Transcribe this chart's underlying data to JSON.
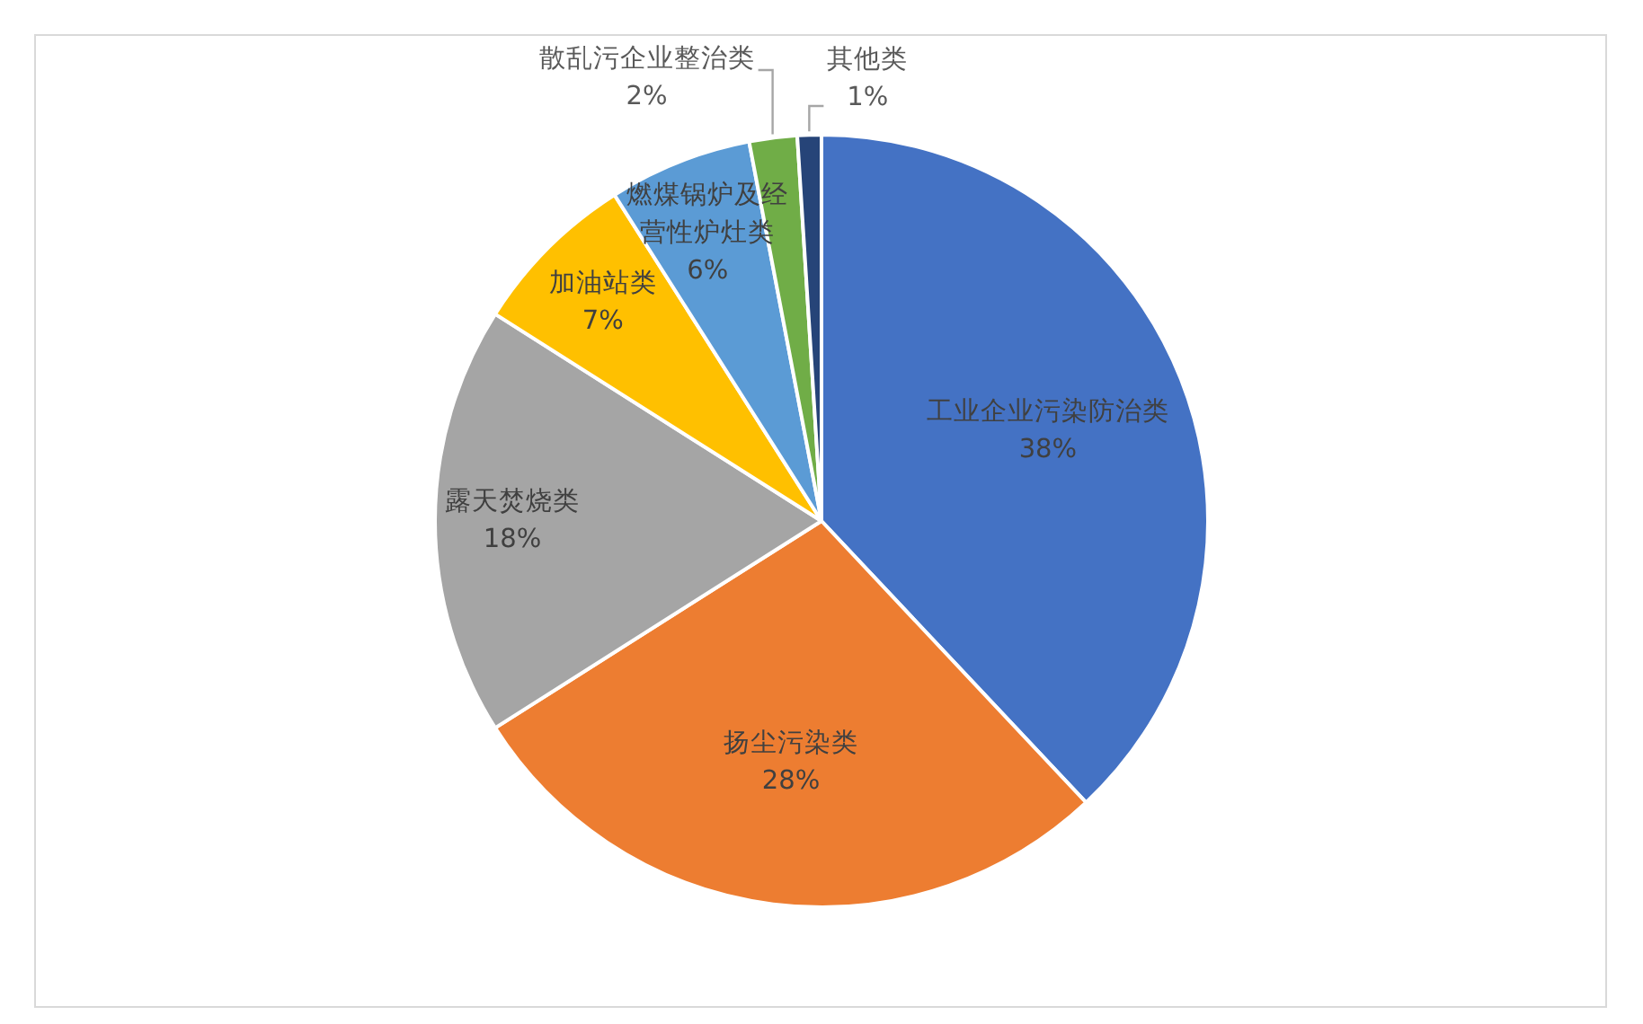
{
  "chart_data": {
    "type": "pie",
    "categories": [
      "工业企业污染防治类",
      "扬尘污染类",
      "露天焚烧类",
      "加油站类",
      "燃煤锅炉及经营性炉灶类",
      "散乱污企业整治类",
      "其他类"
    ],
    "values": [
      38,
      28,
      18,
      7,
      6,
      2,
      1
    ],
    "value_labels": [
      "38%",
      "28%",
      "18%",
      "7%",
      "6%",
      "2%",
      "1%"
    ],
    "colors": [
      "#4472c4",
      "#ed7d31",
      "#a5a5a5",
      "#ffc000",
      "#5b9bd5",
      "#70ad47",
      "#264478"
    ]
  }
}
